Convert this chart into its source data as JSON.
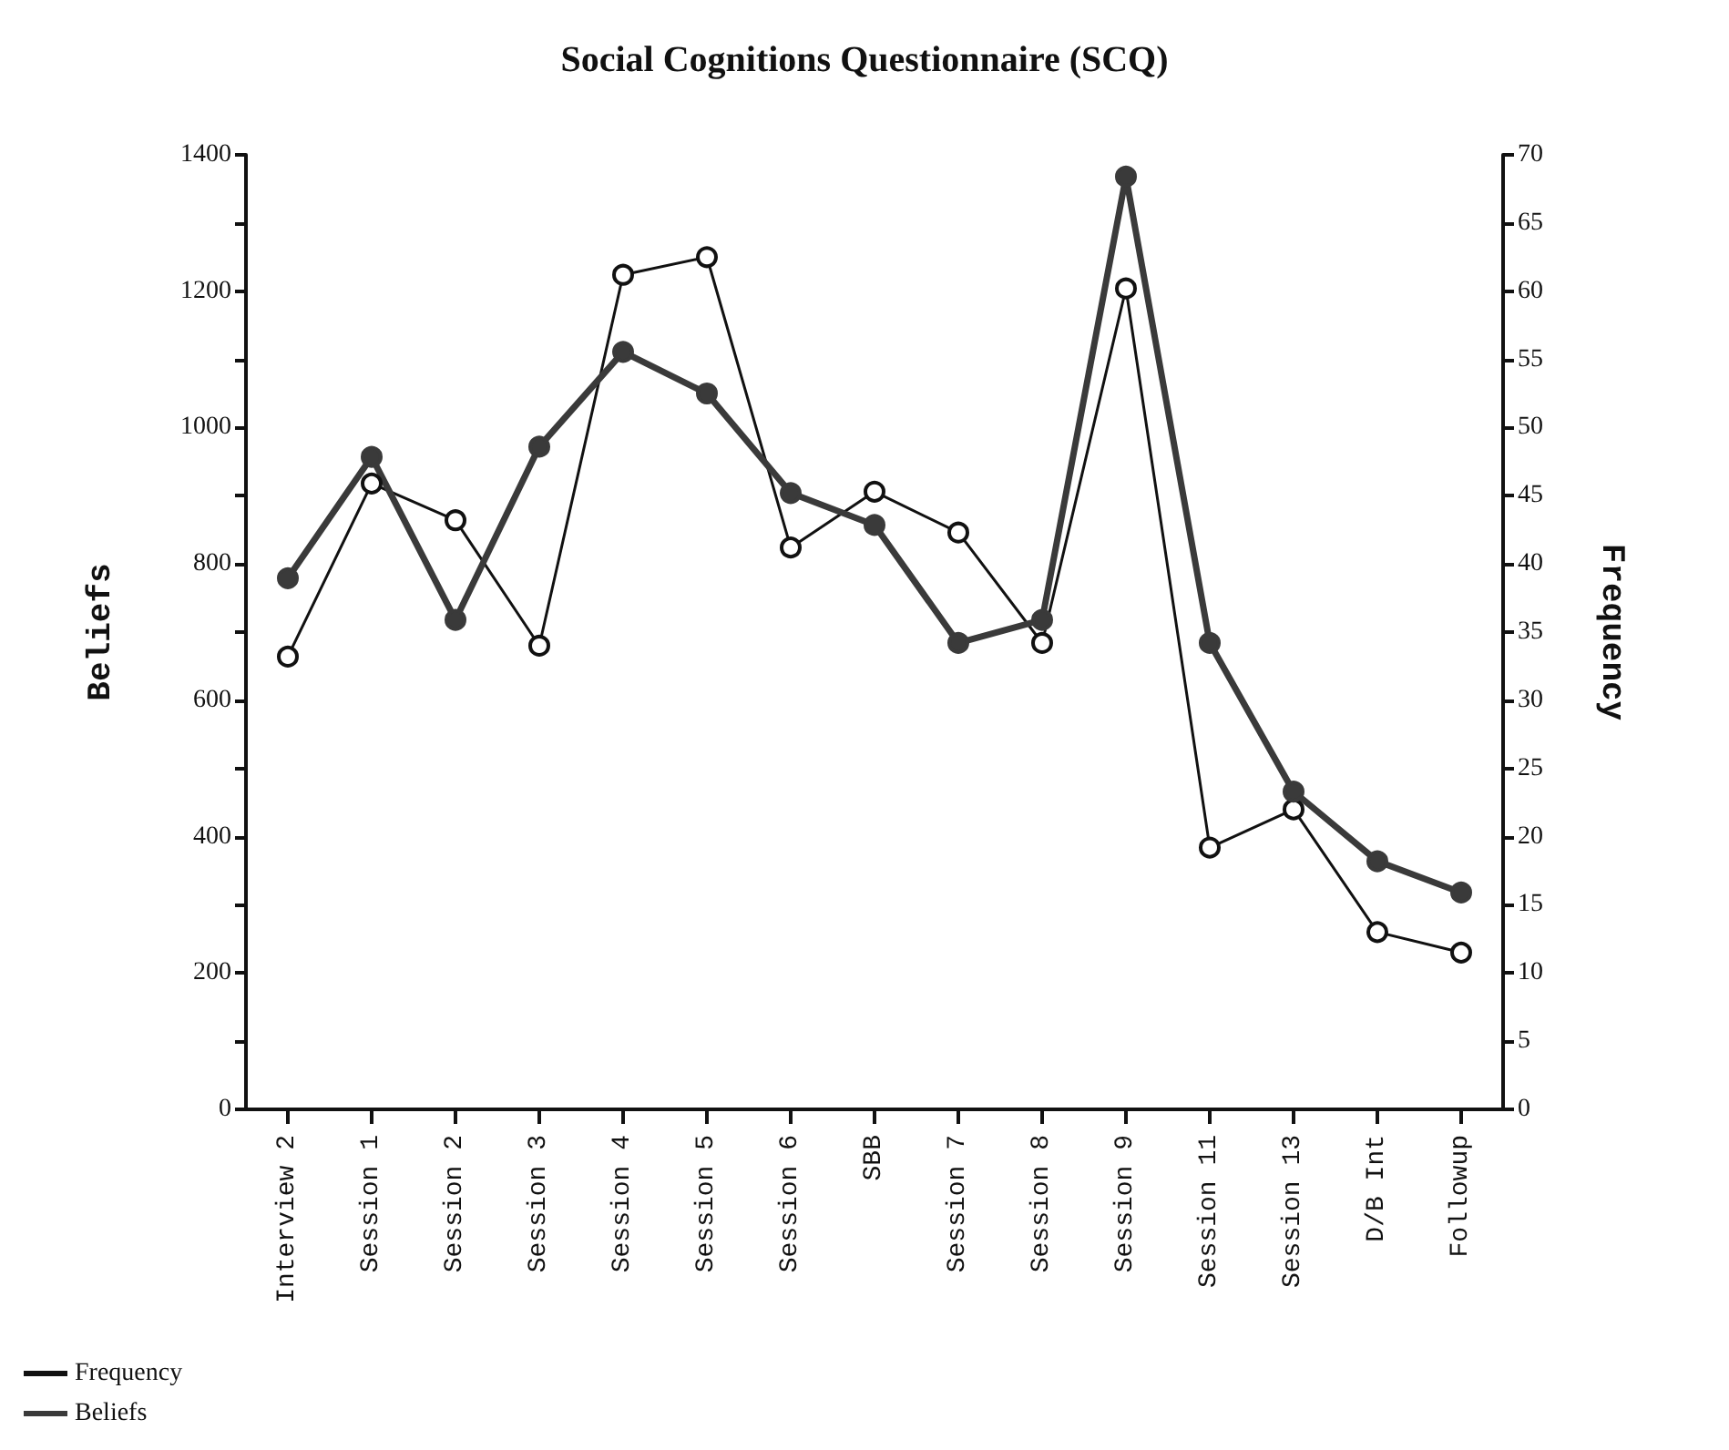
{
  "chart_data": {
    "type": "line",
    "title": "Social Cognitions Questionnaire (SCQ)",
    "ylabel": "Beliefs",
    "y2label": "Frequency",
    "categories": [
      "Interview 2",
      "Session 1",
      "Session 2",
      "Session 3",
      "Session 4",
      "Session 5",
      "Session 6",
      "SBB",
      "Session 7",
      "Session 8",
      "Session 9",
      "Session 11",
      "Session 13",
      "D/B Int",
      "Followup"
    ],
    "series": [
      {
        "name": "Frequency",
        "color": "#111111",
        "axis": "y2",
        "values": [
          33.2,
          45.9,
          43.2,
          34.0,
          61.2,
          62.5,
          41.2,
          45.3,
          42.3,
          34.2,
          60.2,
          19.2,
          22.0,
          13.0,
          11.5
        ]
      },
      {
        "name": "Beliefs",
        "color": "#3a3a3a",
        "values": [
          779,
          957,
          718,
          972,
          1111,
          1050,
          904,
          857,
          684,
          718,
          1368,
          684,
          466,
          364,
          318
        ]
      }
    ],
    "ylim": [
      0,
      1400
    ],
    "yticks": [
      0,
      {
        "value": 100,
        "label": null
      },
      200,
      {
        "value": 300,
        "label": null
      },
      400,
      {
        "value": 500,
        "label": null
      },
      600,
      {
        "value": 700,
        "label": null
      },
      800,
      {
        "value": 900,
        "label": null
      },
      1000,
      {
        "value": 1100,
        "label": null
      },
      1200,
      {
        "value": 1300,
        "label": null
      },
      1400
    ],
    "y2lim": [
      0,
      70
    ],
    "y2ticks": [
      0,
      5,
      10,
      15,
      20,
      25,
      30,
      35,
      40,
      45,
      50,
      55,
      60,
      65,
      70
    ],
    "grid": false,
    "legend": "bottom left",
    "marker": "circle",
    "line_style": "solid"
  }
}
